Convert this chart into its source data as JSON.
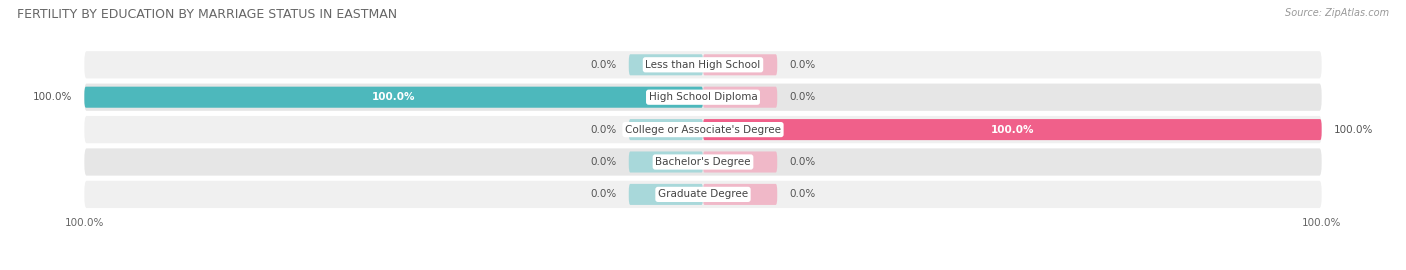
{
  "title": "FERTILITY BY EDUCATION BY MARRIAGE STATUS IN EASTMAN",
  "source": "Source: ZipAtlas.com",
  "categories": [
    "Less than High School",
    "High School Diploma",
    "College or Associate's Degree",
    "Bachelor's Degree",
    "Graduate Degree"
  ],
  "married": [
    0.0,
    100.0,
    0.0,
    0.0,
    0.0
  ],
  "unmarried": [
    0.0,
    0.0,
    100.0,
    0.0,
    0.0
  ],
  "married_color": "#4db8bc",
  "married_stub_color": "#a8d8da",
  "unmarried_color": "#f0608a",
  "unmarried_stub_color": "#f0b8c8",
  "row_bg_even": "#f0f0f0",
  "row_bg_odd": "#e6e6e6",
  "max_val": 100.0,
  "stub_size": 12.0,
  "title_fontsize": 9,
  "source_fontsize": 7,
  "bar_label_fontsize": 7.5,
  "cat_label_fontsize": 7.5,
  "legend_fontsize": 8,
  "axis_label_fontsize": 7.5
}
